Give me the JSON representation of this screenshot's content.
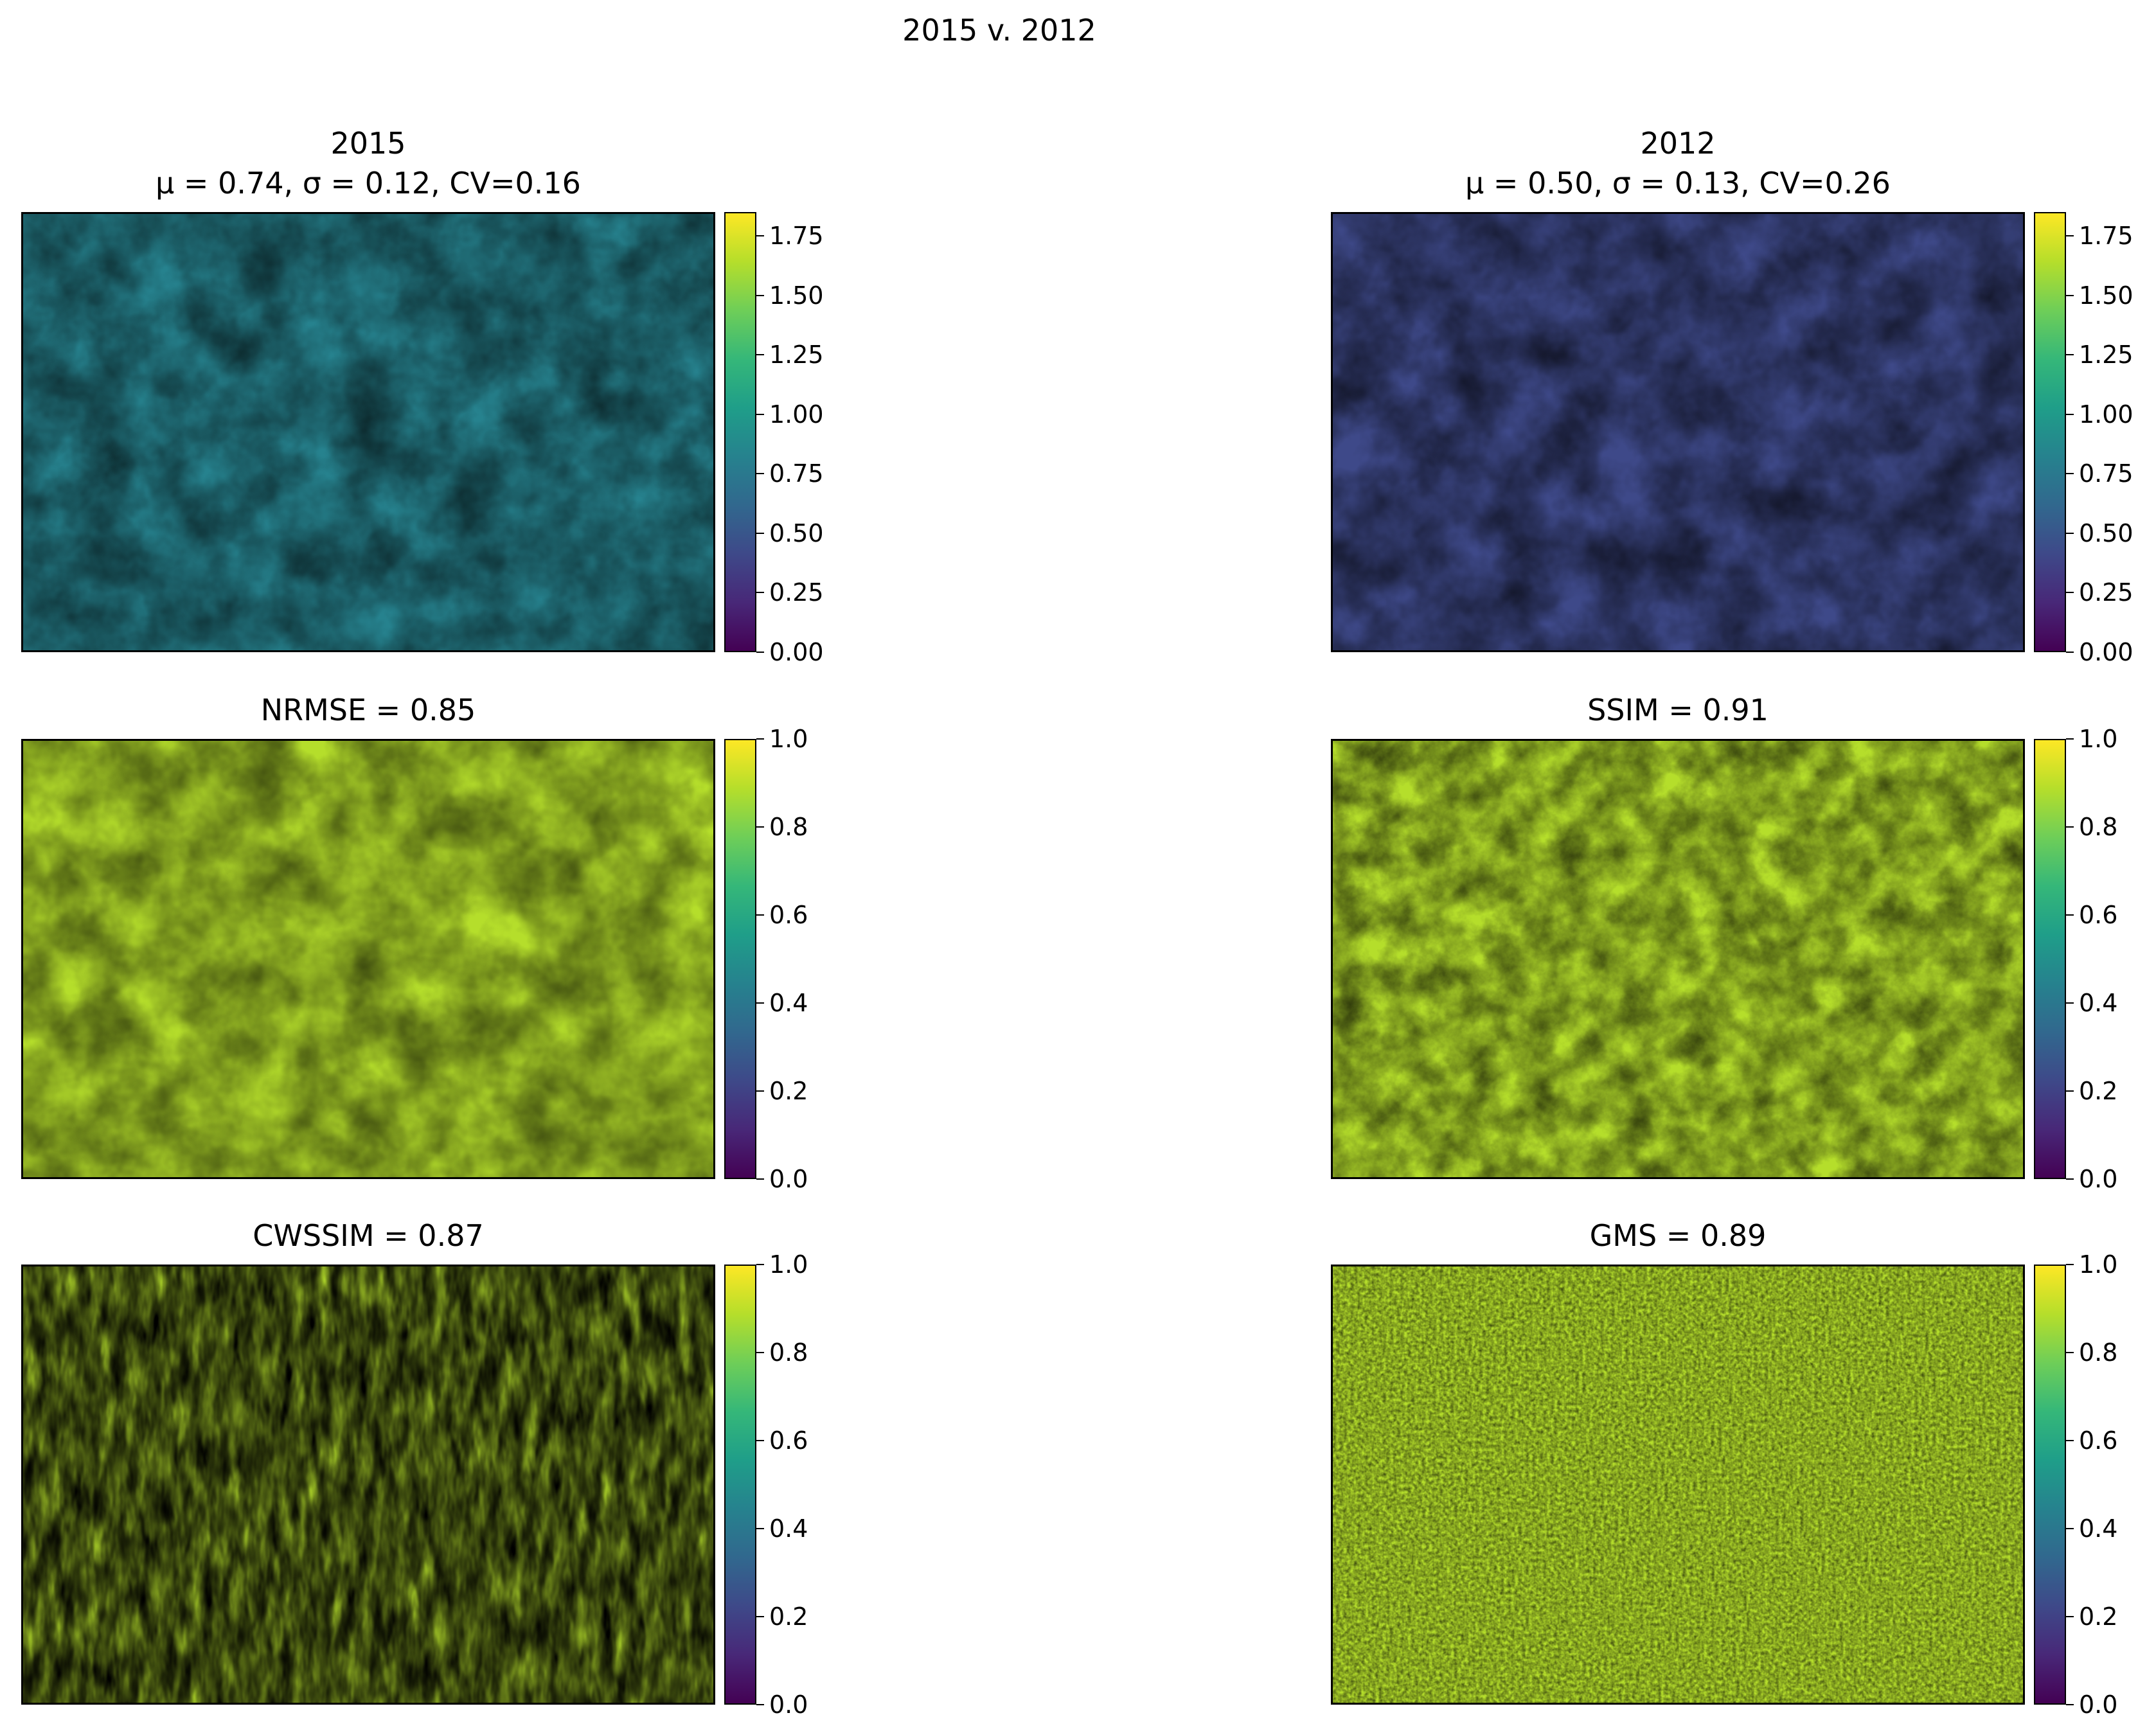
{
  "suptitle": "2015 v. 2012",
  "colormap": {
    "name": "viridis",
    "stops": [
      "#440154",
      "#482878",
      "#3e4989",
      "#31688e",
      "#26828e",
      "#1f9e89",
      "#35b779",
      "#6ece58",
      "#b5de2b",
      "#fde725"
    ]
  },
  "chart_data": [
    {
      "type": "heatmap",
      "title_line1": "2015",
      "title_line2": "μ = 0.74, σ = 0.12, CV=0.16",
      "stats": {
        "mu": 0.74,
        "sigma": 0.12,
        "cv": 0.16
      },
      "colorbar": {
        "vmin": 0.0,
        "vmax": 1.85,
        "ticks": [
          "0.00",
          "0.25",
          "0.50",
          "0.75",
          "1.00",
          "1.25",
          "1.50",
          "1.75"
        ]
      },
      "typical_value": 0.74
    },
    {
      "type": "heatmap",
      "title_line1": "2012",
      "title_line2": "μ = 0.50, σ = 0.13, CV=0.26",
      "stats": {
        "mu": 0.5,
        "sigma": 0.13,
        "cv": 0.26
      },
      "colorbar": {
        "vmin": 0.0,
        "vmax": 1.85,
        "ticks": [
          "0.00",
          "0.25",
          "0.50",
          "0.75",
          "1.00",
          "1.25",
          "1.50",
          "1.75"
        ]
      },
      "typical_value": 0.5
    },
    {
      "type": "heatmap",
      "title_line1": "NRMSE = 0.85",
      "title_line2": "",
      "metric": {
        "name": "NRMSE",
        "value": 0.85
      },
      "colorbar": {
        "vmin": 0.0,
        "vmax": 1.0,
        "ticks": [
          "0.0",
          "0.2",
          "0.4",
          "0.6",
          "0.8",
          "1.0"
        ]
      },
      "typical_value": 0.85
    },
    {
      "type": "heatmap",
      "title_line1": "SSIM = 0.91",
      "title_line2": "",
      "metric": {
        "name": "SSIM",
        "value": 0.91
      },
      "colorbar": {
        "vmin": 0.0,
        "vmax": 1.0,
        "ticks": [
          "0.0",
          "0.2",
          "0.4",
          "0.6",
          "0.8",
          "1.0"
        ]
      },
      "typical_value": 0.91
    },
    {
      "type": "heatmap",
      "title_line1": "CWSSIM = 0.87",
      "title_line2": "",
      "metric": {
        "name": "CWSSIM",
        "value": 0.87
      },
      "colorbar": {
        "vmin": 0.0,
        "vmax": 1.0,
        "ticks": [
          "0.0",
          "0.2",
          "0.4",
          "0.6",
          "0.8",
          "1.0"
        ]
      },
      "typical_value": 0.87
    },
    {
      "type": "heatmap",
      "title_line1": "GMS = 0.89",
      "title_line2": "",
      "metric": {
        "name": "GMS",
        "value": 0.89
      },
      "colorbar": {
        "vmin": 0.0,
        "vmax": 1.0,
        "ticks": [
          "0.0",
          "0.2",
          "0.4",
          "0.6",
          "0.8",
          "1.0"
        ]
      },
      "typical_value": 0.89
    }
  ]
}
